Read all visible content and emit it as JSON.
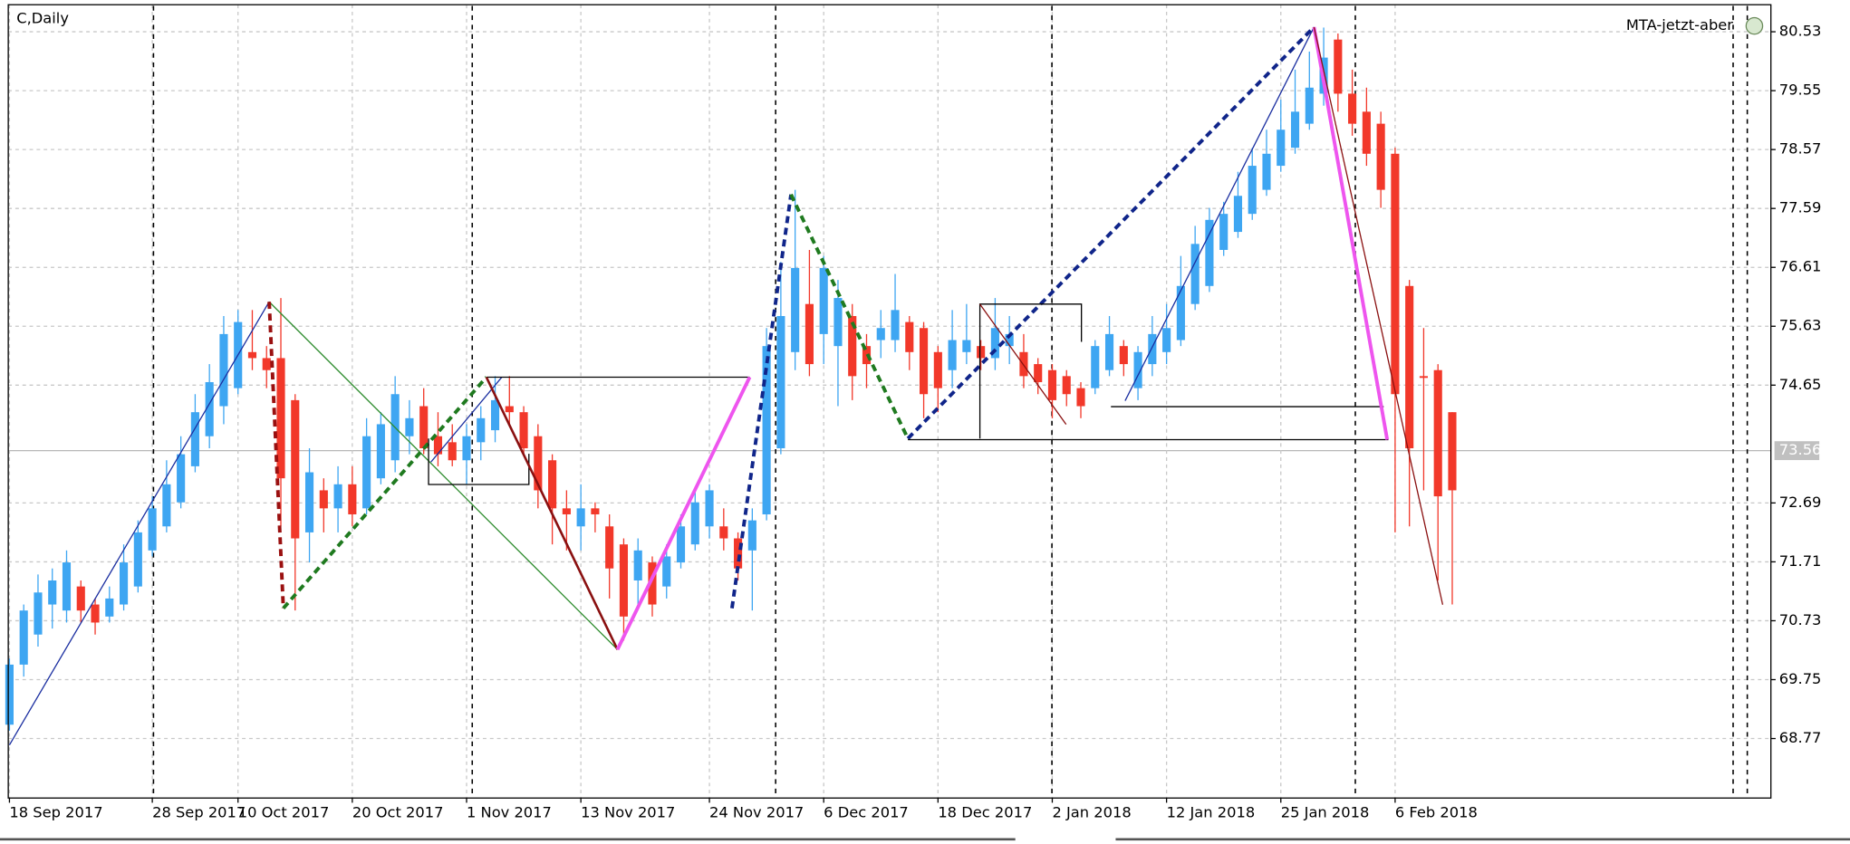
{
  "chart_data": {
    "type": "candlestick",
    "title": "C,Daily",
    "indicator_label": "MTA-jetzt-aber",
    "categories": [
      "18 Sep 2017",
      null,
      null,
      null,
      null,
      null,
      null,
      null,
      null,
      null,
      "28 Sep 2017",
      null,
      null,
      null,
      null,
      null,
      "10 Oct 2017",
      null,
      null,
      null,
      null,
      null,
      null,
      null,
      "20 Oct 2017",
      null,
      null,
      null,
      null,
      null,
      null,
      null,
      "1 Nov 2017",
      null,
      null,
      null,
      null,
      null,
      null,
      null,
      "13 Nov 2017",
      null,
      null,
      null,
      null,
      null,
      null,
      null,
      null,
      "24 Nov 2017",
      null,
      null,
      null,
      null,
      null,
      null,
      null,
      "6 Dec 2017",
      null,
      null,
      null,
      null,
      null,
      null,
      null,
      "18 Dec 2017",
      null,
      null,
      null,
      null,
      null,
      null,
      null,
      "2 Jan 2018",
      null,
      null,
      null,
      null,
      null,
      null,
      null,
      "12 Jan 2018",
      null,
      null,
      null,
      null,
      null,
      null,
      null,
      "25 Jan 2018",
      null,
      null,
      null,
      null,
      null,
      null,
      null,
      "6 Feb 2018",
      null,
      null,
      null,
      null
    ],
    "open": [
      69.0,
      70.0,
      70.5,
      71.0,
      70.9,
      71.3,
      71.0,
      70.8,
      71.0,
      71.3,
      71.9,
      72.3,
      72.7,
      73.3,
      73.8,
      74.3,
      74.6,
      75.2,
      75.1,
      75.1,
      74.4,
      72.2,
      72.9,
      72.6,
      73.0,
      72.6,
      73.1,
      73.4,
      73.8,
      74.3,
      73.8,
      73.7,
      73.4,
      73.7,
      73.9,
      74.3,
      74.2,
      73.8,
      73.4,
      72.6,
      72.3,
      72.6,
      72.3,
      72.0,
      71.4,
      71.7,
      71.3,
      71.7,
      72.0,
      72.3,
      72.3,
      72.1,
      71.9,
      72.5,
      73.6,
      75.2,
      76.0,
      75.5,
      75.3,
      75.8,
      75.3,
      75.4,
      75.4,
      75.7,
      75.6,
      75.2,
      74.9,
      75.2,
      75.3,
      75.1,
      75.3,
      75.2,
      75.0,
      74.9,
      74.8,
      74.6,
      74.6,
      74.9,
      75.3,
      74.6,
      75.0,
      75.2,
      75.4,
      76.0,
      76.3,
      76.9,
      77.2,
      77.5,
      77.9,
      78.3,
      78.6,
      79.0,
      79.5,
      80.4,
      79.5,
      79.2,
      79.0,
      78.5,
      76.3,
      74.8,
      74.9,
      74.2
    ],
    "high": [
      70.1,
      71.0,
      71.5,
      71.6,
      71.9,
      71.4,
      71.1,
      71.3,
      72.0,
      72.4,
      72.8,
      73.4,
      73.8,
      74.5,
      75.0,
      75.8,
      75.9,
      75.9,
      75.3,
      76.1,
      74.5,
      73.6,
      73.1,
      73.3,
      73.3,
      74.1,
      74.2,
      74.8,
      74.4,
      74.6,
      74.2,
      74.0,
      74.0,
      74.3,
      74.8,
      74.8,
      74.3,
      74.0,
      73.5,
      72.9,
      73.0,
      72.7,
      72.5,
      72.1,
      72.1,
      71.8,
      72.0,
      72.5,
      72.9,
      73.0,
      72.6,
      72.2,
      72.6,
      75.6,
      76.7,
      77.9,
      76.9,
      76.8,
      76.4,
      76.0,
      75.5,
      75.9,
      76.5,
      75.8,
      75.7,
      75.3,
      75.9,
      76.0,
      75.4,
      76.1,
      75.8,
      75.5,
      75.1,
      75.0,
      74.9,
      74.7,
      75.4,
      75.8,
      75.4,
      75.3,
      75.8,
      76.0,
      76.8,
      77.3,
      77.6,
      77.7,
      78.2,
      78.6,
      78.9,
      79.4,
      79.9,
      80.2,
      80.6,
      80.5,
      79.9,
      79.6,
      79.2,
      78.6,
      76.4,
      75.6,
      75.0,
      74.2
    ],
    "low": [
      68.9,
      69.8,
      70.3,
      70.6,
      70.7,
      70.7,
      70.5,
      70.7,
      70.9,
      71.2,
      71.8,
      72.2,
      72.6,
      73.2,
      73.6,
      74.0,
      74.5,
      74.9,
      74.6,
      72.3,
      70.9,
      71.7,
      72.2,
      72.2,
      72.3,
      72.5,
      73.0,
      73.2,
      73.5,
      73.5,
      73.3,
      73.3,
      73.0,
      73.4,
      73.7,
      74.0,
      73.5,
      72.6,
      72.0,
      71.9,
      71.9,
      72.2,
      71.1,
      70.4,
      71.0,
      70.8,
      71.1,
      71.6,
      71.9,
      72.1,
      71.9,
      71.4,
      70.9,
      72.4,
      73.5,
      74.9,
      74.8,
      75.0,
      74.3,
      74.4,
      74.6,
      75.1,
      75.2,
      74.9,
      74.1,
      74.2,
      74.6,
      75.0,
      74.9,
      74.9,
      75.0,
      74.6,
      74.5,
      74.1,
      74.3,
      74.1,
      74.5,
      74.8,
      74.8,
      74.4,
      74.8,
      75.0,
      75.3,
      75.9,
      76.2,
      76.8,
      77.1,
      77.4,
      77.8,
      78.2,
      78.5,
      78.9,
      79.3,
      79.2,
      78.8,
      78.3,
      77.6,
      72.2,
      72.3,
      72.9,
      71.4,
      71.0
    ],
    "close": [
      70.0,
      70.9,
      71.2,
      71.4,
      71.7,
      70.9,
      70.7,
      71.1,
      71.7,
      72.2,
      72.6,
      73.0,
      73.5,
      74.2,
      74.7,
      75.5,
      75.7,
      75.1,
      74.9,
      73.1,
      72.1,
      73.2,
      72.6,
      73.0,
      72.5,
      73.8,
      74.0,
      74.5,
      74.1,
      73.6,
      73.5,
      73.4,
      73.8,
      74.1,
      74.4,
      74.2,
      73.6,
      72.9,
      72.6,
      72.5,
      72.6,
      72.5,
      71.6,
      70.8,
      71.9,
      71.0,
      71.8,
      72.3,
      72.7,
      72.9,
      72.1,
      71.6,
      72.4,
      75.3,
      75.8,
      76.6,
      75.0,
      76.6,
      76.1,
      74.8,
      75.0,
      75.6,
      75.9,
      75.2,
      74.5,
      74.6,
      75.4,
      75.4,
      75.1,
      75.6,
      75.5,
      74.8,
      74.7,
      74.4,
      74.5,
      74.3,
      75.3,
      75.5,
      75.0,
      75.2,
      75.5,
      75.6,
      76.3,
      77.0,
      77.4,
      77.5,
      77.8,
      78.3,
      78.5,
      78.9,
      79.2,
      79.6,
      80.1,
      79.5,
      79.0,
      78.5,
      77.9,
      74.5,
      73.6,
      74.8,
      72.8,
      72.9
    ],
    "up_color": "#3ea6f2",
    "down_color": "#f2382a",
    "current_price": 73.56,
    "ylim": [
      67.78,
      80.98
    ],
    "yticks": [
      80.53,
      79.55,
      78.57,
      77.59,
      76.61,
      75.63,
      74.65,
      72.69,
      71.71,
      70.73,
      69.75,
      68.77
    ],
    "grid": true
  }
}
